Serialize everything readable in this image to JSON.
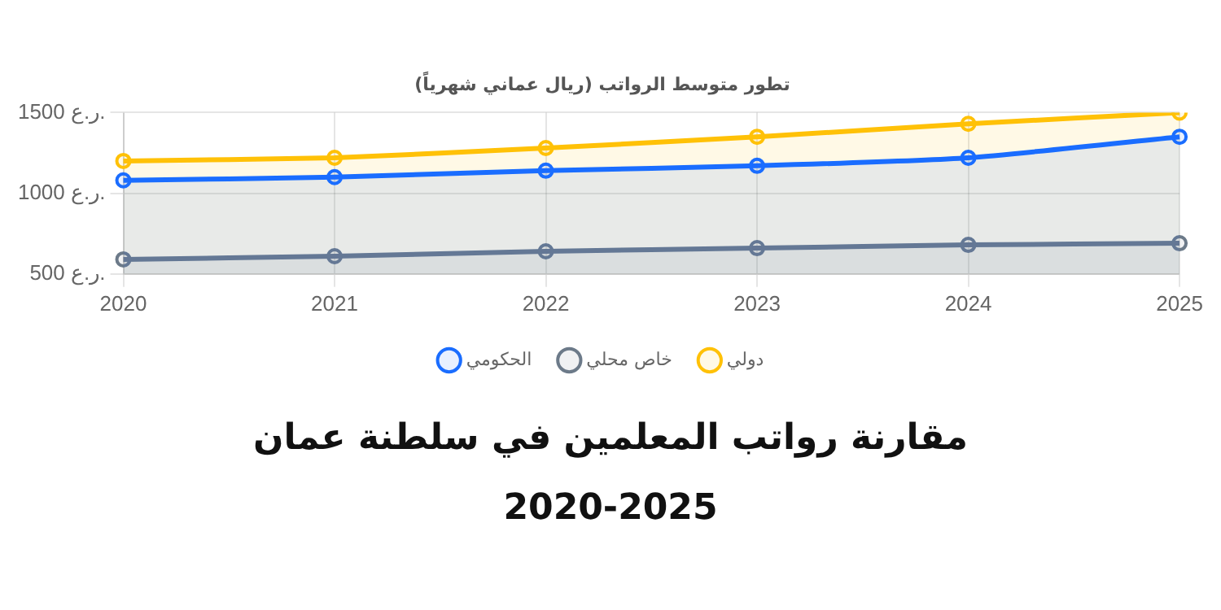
{
  "chart_data": {
    "type": "area",
    "title": "تطور متوسط الرواتب (ريال عماني شهرياً)",
    "categories": [
      "2020",
      "2021",
      "2022",
      "2023",
      "2024",
      "2025"
    ],
    "series": [
      {
        "name": "الحكومي",
        "color": "#1a6dff",
        "values": [
          1080,
          1100,
          1140,
          1170,
          1220,
          1350
        ]
      },
      {
        "name": "خاص محلي",
        "color": "#6c7a89",
        "values": [
          590,
          610,
          640,
          660,
          680,
          690
        ]
      },
      {
        "name": "دولي",
        "color": "#ffc107",
        "values": [
          1200,
          1220,
          1280,
          1350,
          1430,
          1500
        ]
      }
    ],
    "ylim": [
      500,
      1500
    ],
    "yticks": [
      {
        "value": 500,
        "label": "500 ر.ع."
      },
      {
        "value": 1000,
        "label": "1000 ر.ع."
      },
      {
        "value": 1500,
        "label": "1500 ر.ع."
      }
    ],
    "grid": true,
    "legend": "bottom",
    "marker": "circle",
    "line_style": "solid",
    "annotations": [
      "مقارنة رواتب المعلمين في سلطنة عمان",
      "2020-2025"
    ]
  }
}
